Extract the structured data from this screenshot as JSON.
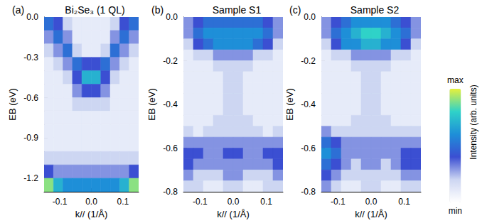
{
  "chart_data": [
    {
      "type": "heatmap",
      "label": "(a)",
      "title": "Bi₂Se₃ (1 QL)",
      "x_label": "k// (1/Å)",
      "y_label": "EB (eV)",
      "xlim": [
        -0.15,
        0.15
      ],
      "ylim": [
        -1.3,
        0
      ],
      "xticks": [
        -0.1,
        {
          "value": 0,
          "label": "0.0"
        },
        0.1
      ],
      "yticks": [
        {
          "value": 0,
          "label": "0.0"
        },
        -0.3,
        -0.6,
        -0.9,
        -1.2
      ],
      "x_edges": [
        -0.15,
        -0.12,
        -0.09,
        -0.06,
        -0.03,
        0,
        0.03,
        0.06,
        0.09,
        0.12,
        0.15
      ],
      "y_edges": [
        0,
        -0.1,
        -0.2,
        -0.3,
        -0.4,
        -0.5,
        -0.6,
        -0.7,
        -0.8,
        -0.9,
        -1.0,
        -1.1,
        -1.2,
        -1.3
      ],
      "cells": [
        [
          5,
          4,
          2,
          1,
          1,
          1,
          1,
          2,
          4,
          5
        ],
        [
          3,
          5,
          3,
          1,
          1,
          1,
          1,
          3,
          5,
          3
        ],
        [
          2,
          3,
          5,
          2,
          1,
          1,
          2,
          5,
          3,
          2
        ],
        [
          1,
          2,
          3,
          5,
          4,
          4,
          5,
          3,
          2,
          1
        ],
        [
          1,
          1,
          2,
          4,
          7,
          7,
          4,
          2,
          1,
          1
        ],
        [
          1,
          1,
          1,
          3,
          4,
          4,
          3,
          1,
          1,
          1
        ],
        [
          1,
          1,
          1,
          2,
          2,
          2,
          2,
          1,
          1,
          1
        ],
        [
          1,
          1,
          1,
          1,
          1,
          1,
          1,
          1,
          1,
          1
        ],
        [
          1,
          1,
          1,
          1,
          1,
          1,
          1,
          1,
          1,
          1
        ],
        [
          1,
          1,
          1,
          1,
          1,
          1,
          1,
          1,
          1,
          1
        ],
        [
          2,
          2,
          2,
          2,
          2,
          2,
          2,
          2,
          2,
          2
        ],
        [
          4,
          3,
          3,
          3,
          3,
          3,
          3,
          3,
          3,
          4
        ],
        [
          9,
          7,
          6,
          6,
          6,
          6,
          6,
          6,
          7,
          9
        ]
      ]
    },
    {
      "type": "heatmap",
      "label": "(b)",
      "title": "Sample S1",
      "x_label": "k// (1/Å)",
      "y_label": "EB (eV)",
      "xlim": [
        -0.15,
        0.15
      ],
      "ylim": [
        -0.8,
        0
      ],
      "xticks": [
        -0.1,
        {
          "value": 0,
          "label": "0.0"
        },
        0.1
      ],
      "yticks": [
        {
          "value": 0,
          "label": "0.0"
        },
        -0.2,
        -0.4,
        -0.6,
        -0.8
      ],
      "x_edges": [
        -0.15,
        -0.12,
        -0.09,
        -0.06,
        -0.03,
        0,
        0.03,
        0.06,
        0.09,
        0.12,
        0.15
      ],
      "y_edges": [
        0,
        -0.05,
        -0.1,
        -0.15,
        -0.2,
        -0.25,
        -0.3,
        -0.35,
        -0.4,
        -0.45,
        -0.5,
        -0.55,
        -0.6,
        -0.65,
        -0.7,
        -0.75,
        -0.8
      ],
      "cells": [
        [
          3,
          4,
          5,
          5,
          5,
          5,
          5,
          5,
          4,
          3
        ],
        [
          3,
          5,
          6,
          6,
          6,
          6,
          6,
          6,
          5,
          3
        ],
        [
          2,
          4,
          5,
          6,
          6,
          6,
          6,
          5,
          4,
          2
        ],
        [
          1,
          2,
          2,
          3,
          3,
          3,
          3,
          2,
          2,
          1
        ],
        [
          1,
          1,
          1,
          2,
          2,
          2,
          2,
          1,
          1,
          1
        ],
        [
          1,
          1,
          1,
          1,
          2,
          2,
          1,
          1,
          1,
          1
        ],
        [
          1,
          1,
          1,
          1,
          2,
          2,
          1,
          1,
          1,
          1
        ],
        [
          1,
          1,
          1,
          1,
          2,
          2,
          1,
          1,
          1,
          1
        ],
        [
          1,
          1,
          1,
          1,
          2,
          2,
          1,
          1,
          1,
          1
        ],
        [
          1,
          1,
          1,
          2,
          2,
          2,
          2,
          1,
          1,
          1
        ],
        [
          2,
          1,
          2,
          2,
          2,
          2,
          2,
          2,
          1,
          2
        ],
        [
          3,
          3,
          3,
          3,
          3,
          3,
          3,
          3,
          3,
          3
        ],
        [
          4,
          4,
          3,
          3,
          4,
          4,
          3,
          3,
          4,
          4
        ],
        [
          4,
          3,
          3,
          3,
          3,
          3,
          3,
          3,
          3,
          4
        ],
        [
          3,
          2,
          2,
          2,
          3,
          3,
          2,
          2,
          2,
          3
        ],
        [
          2,
          2,
          1,
          1,
          2,
          2,
          1,
          1,
          2,
          2
        ]
      ]
    },
    {
      "type": "heatmap",
      "label": "(c)",
      "title": "Sample S2",
      "x_label": "k// (1/Å)",
      "y_label": "EB (eV)",
      "xlim": [
        -0.15,
        0.15
      ],
      "ylim": [
        -0.8,
        0
      ],
      "xticks": [
        -0.1,
        {
          "value": 0,
          "label": "0.0"
        },
        0.1
      ],
      "yticks": [
        {
          "value": 0,
          "label": "0.0"
        },
        -0.2,
        -0.4,
        -0.6,
        -0.8
      ],
      "x_edges": [
        -0.15,
        -0.12,
        -0.09,
        -0.06,
        -0.03,
        0,
        0.03,
        0.06,
        0.09,
        0.12,
        0.15
      ],
      "y_edges": [
        0,
        -0.05,
        -0.1,
        -0.15,
        -0.2,
        -0.25,
        -0.3,
        -0.35,
        -0.4,
        -0.45,
        -0.5,
        -0.55,
        -0.6,
        -0.65,
        -0.7,
        -0.75,
        -0.8
      ],
      "cells": [
        [
          3,
          4,
          5,
          6,
          6,
          6,
          6,
          5,
          4,
          3
        ],
        [
          3,
          5,
          6,
          7,
          8,
          8,
          7,
          6,
          5,
          3
        ],
        [
          2,
          4,
          6,
          6,
          7,
          7,
          6,
          6,
          4,
          2
        ],
        [
          1,
          2,
          2,
          3,
          3,
          3,
          3,
          2,
          2,
          1
        ],
        [
          1,
          1,
          1,
          2,
          2,
          2,
          2,
          1,
          1,
          1
        ],
        [
          1,
          1,
          1,
          1,
          2,
          2,
          1,
          1,
          1,
          1
        ],
        [
          1,
          1,
          1,
          1,
          2,
          2,
          1,
          1,
          1,
          1
        ],
        [
          1,
          1,
          1,
          1,
          2,
          2,
          1,
          1,
          1,
          1
        ],
        [
          1,
          1,
          1,
          1,
          2,
          2,
          1,
          1,
          1,
          1
        ],
        [
          1,
          1,
          1,
          2,
          2,
          2,
          2,
          1,
          1,
          1
        ],
        [
          3,
          2,
          2,
          2,
          2,
          2,
          2,
          2,
          2,
          2
        ],
        [
          5,
          4,
          3,
          3,
          3,
          3,
          3,
          3,
          3,
          3
        ],
        [
          6,
          5,
          3,
          3,
          3,
          3,
          3,
          3,
          4,
          4
        ],
        [
          5,
          4,
          3,
          2,
          3,
          3,
          2,
          3,
          4,
          4
        ],
        [
          4,
          3,
          2,
          2,
          2,
          2,
          2,
          2,
          3,
          3
        ],
        [
          3,
          2,
          1,
          1,
          2,
          2,
          1,
          1,
          2,
          2
        ]
      ]
    }
  ],
  "colorbar": {
    "title": "Intensity (arb. units)",
    "range": [
      0,
      10
    ],
    "ticks": [
      {
        "value": 10,
        "label": "max"
      },
      {
        "value": 0,
        "label": "min"
      }
    ]
  }
}
